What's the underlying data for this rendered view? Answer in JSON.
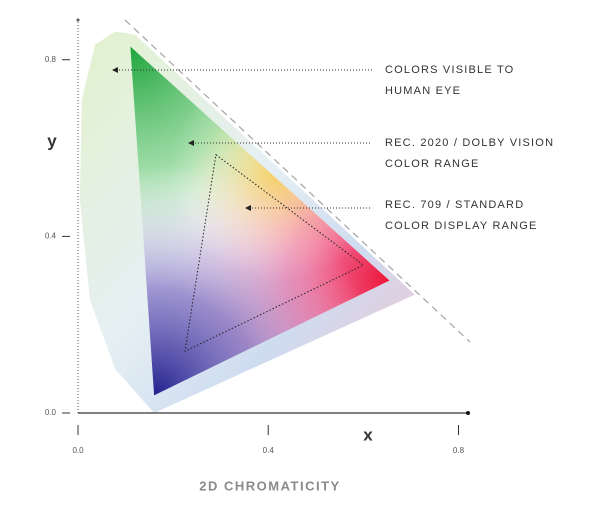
{
  "chart_data": {
    "type": "chromaticity",
    "title": "2D CHROMATICITY",
    "x_label": "x",
    "y_label": "y",
    "xlim": [
      0,
      0.82
    ],
    "ylim": [
      0,
      0.89
    ],
    "xticks": [
      {
        "value": 0,
        "label": "0.0"
      },
      0.4,
      0.8
    ],
    "yticks": [
      {
        "value": 0,
        "label": "0.0"
      },
      0.4,
      0.8
    ],
    "locus": {
      "x": [
        0.16,
        0.078,
        0.025,
        0.004,
        0.008,
        0.036,
        0.078,
        0.12,
        0.708
      ],
      "y": [
        0.0,
        0.1,
        0.256,
        0.483,
        0.71,
        0.834,
        0.864,
        0.857,
        0.268
      ]
    },
    "gamuts": [
      {
        "x": [
          0.11,
          0.655,
          0.16
        ],
        "y": [
          0.83,
          0.3,
          0.04
        ]
      },
      {
        "x": [
          0.29,
          0.6,
          0.225
        ],
        "y": [
          0.585,
          0.335,
          0.14
        ]
      }
    ],
    "annotations": [
      {
        "lines": [
          "COLORS VISIBLE TO",
          "HUMAN EYE"
        ]
      },
      {
        "lines": [
          "REC. 2020 / DOLBY VISION",
          "COLOR RANGE"
        ]
      },
      {
        "lines": [
          "REC. 709 / STANDARD",
          "COLOR DISPLAY RANGE"
        ]
      }
    ]
  }
}
